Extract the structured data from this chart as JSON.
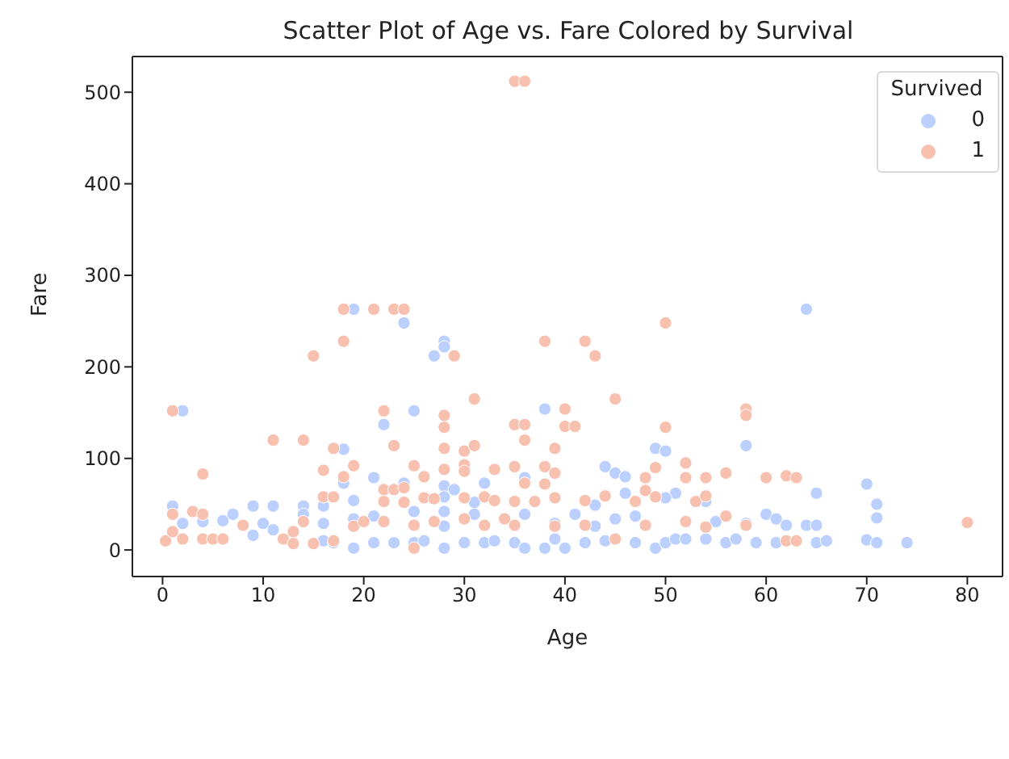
{
  "chart_data": {
    "type": "scatter",
    "title": "Scatter Plot of Age vs. Fare Colored by Survival",
    "xlabel": "Age",
    "ylabel": "Fare",
    "legend_title": "Survived",
    "legend": "top right",
    "grid": false,
    "marker": "circle",
    "xlim": [
      -3,
      83.5
    ],
    "xticks": [
      0,
      10,
      20,
      30,
      40,
      50,
      60,
      70,
      80
    ],
    "ylim": [
      -29,
      539
    ],
    "yticks": [
      0,
      100,
      200,
      300,
      400,
      500
    ],
    "series": [
      {
        "name": "0",
        "color": "#bbd0fe",
        "x": [
          64,
          19,
          24,
          28,
          28,
          27,
          2,
          25,
          22,
          38,
          18,
          58,
          49,
          50,
          18,
          21,
          24,
          28,
          29,
          32,
          36,
          44,
          45,
          46,
          46,
          51,
          65,
          70,
          71,
          71,
          50,
          28,
          31,
          43,
          54,
          1,
          2,
          4,
          6,
          7,
          9,
          9,
          10,
          11,
          11,
          14,
          14,
          16,
          16,
          16,
          17,
          19,
          19,
          19,
          21,
          21,
          23,
          25,
          25,
          26,
          28,
          28,
          28,
          30,
          31,
          32,
          33,
          35,
          36,
          36,
          38,
          39,
          39,
          40,
          41,
          42,
          43,
          44,
          45,
          47,
          47,
          49,
          50,
          51,
          52,
          54,
          55,
          56,
          57,
          58,
          59,
          60,
          61,
          61,
          62,
          64,
          65,
          66,
          70,
          71,
          74,
          65
        ],
        "values": [
          263,
          263,
          248,
          228,
          222,
          212,
          152,
          152,
          137,
          154,
          110,
          114,
          111,
          108,
          73,
          79,
          73,
          70,
          66,
          73,
          79,
          91,
          84,
          80,
          62,
          62,
          62,
          72,
          50,
          35,
          57,
          58,
          52,
          49,
          53,
          48,
          29,
          31,
          32,
          39,
          48,
          16,
          29,
          48,
          22,
          48,
          39,
          48,
          29,
          10,
          8,
          54,
          34,
          2,
          37,
          8,
          8,
          42,
          8,
          10,
          42,
          26,
          2,
          8,
          39,
          8,
          10,
          8,
          2,
          39,
          2,
          29,
          12,
          2,
          39,
          8,
          26,
          10,
          34,
          37,
          8,
          2,
          8,
          12,
          12,
          12,
          31,
          8,
          12,
          29,
          8,
          39,
          8,
          34,
          27,
          27,
          8,
          10,
          11,
          8,
          8,
          27
        ]
      },
      {
        "name": "1",
        "color": "#f8c1af",
        "x": [
          35,
          36,
          18,
          21,
          23,
          24,
          18,
          15,
          29,
          38,
          42,
          43,
          50,
          1,
          22,
          28,
          28,
          31,
          35,
          36,
          40,
          40,
          41,
          45,
          50,
          58,
          58,
          11,
          14,
          17,
          23,
          28,
          30,
          31,
          36,
          39,
          4,
          16,
          18,
          19,
          25,
          26,
          28,
          30,
          30,
          33,
          35,
          36,
          38,
          39,
          38,
          49,
          52,
          52,
          48,
          56,
          60,
          62,
          63,
          54,
          16,
          17,
          22,
          22,
          23,
          24,
          24,
          26,
          27,
          30,
          32,
          33,
          35,
          37,
          39,
          42,
          44,
          47,
          48,
          49,
          53,
          54,
          0.3,
          1,
          1,
          2,
          3,
          4,
          4,
          5,
          6,
          8,
          12,
          13,
          13,
          14,
          15,
          17,
          19,
          20,
          22,
          25,
          25,
          27,
          30,
          32,
          34,
          35,
          39,
          42,
          45,
          48,
          52,
          54,
          56,
          58,
          62,
          63,
          80
        ],
        "values": [
          512,
          512,
          263,
          263,
          263,
          263,
          228,
          212,
          212,
          228,
          228,
          212,
          248,
          152,
          152,
          147,
          134,
          165,
          137,
          137,
          154,
          135,
          135,
          165,
          134,
          154,
          147,
          120,
          120,
          111,
          114,
          111,
          108,
          114,
          120,
          111,
          83,
          87,
          80,
          92,
          92,
          80,
          88,
          93,
          86,
          88,
          91,
          73,
          91,
          84,
          72,
          90,
          95,
          79,
          79,
          84,
          79,
          81,
          79,
          79,
          58,
          58,
          66,
          53,
          66,
          68,
          52,
          57,
          56,
          57,
          58,
          54,
          53,
          53,
          57,
          54,
          59,
          53,
          65,
          58,
          53,
          59,
          10,
          39,
          20,
          12,
          42,
          39,
          12,
          12,
          12,
          27,
          12,
          20,
          7,
          31,
          7,
          10,
          26,
          31,
          31,
          2,
          27,
          31,
          34,
          27,
          34,
          27,
          26,
          27,
          12,
          27,
          31,
          25,
          37,
          27,
          10,
          10,
          30
        ]
      }
    ]
  }
}
